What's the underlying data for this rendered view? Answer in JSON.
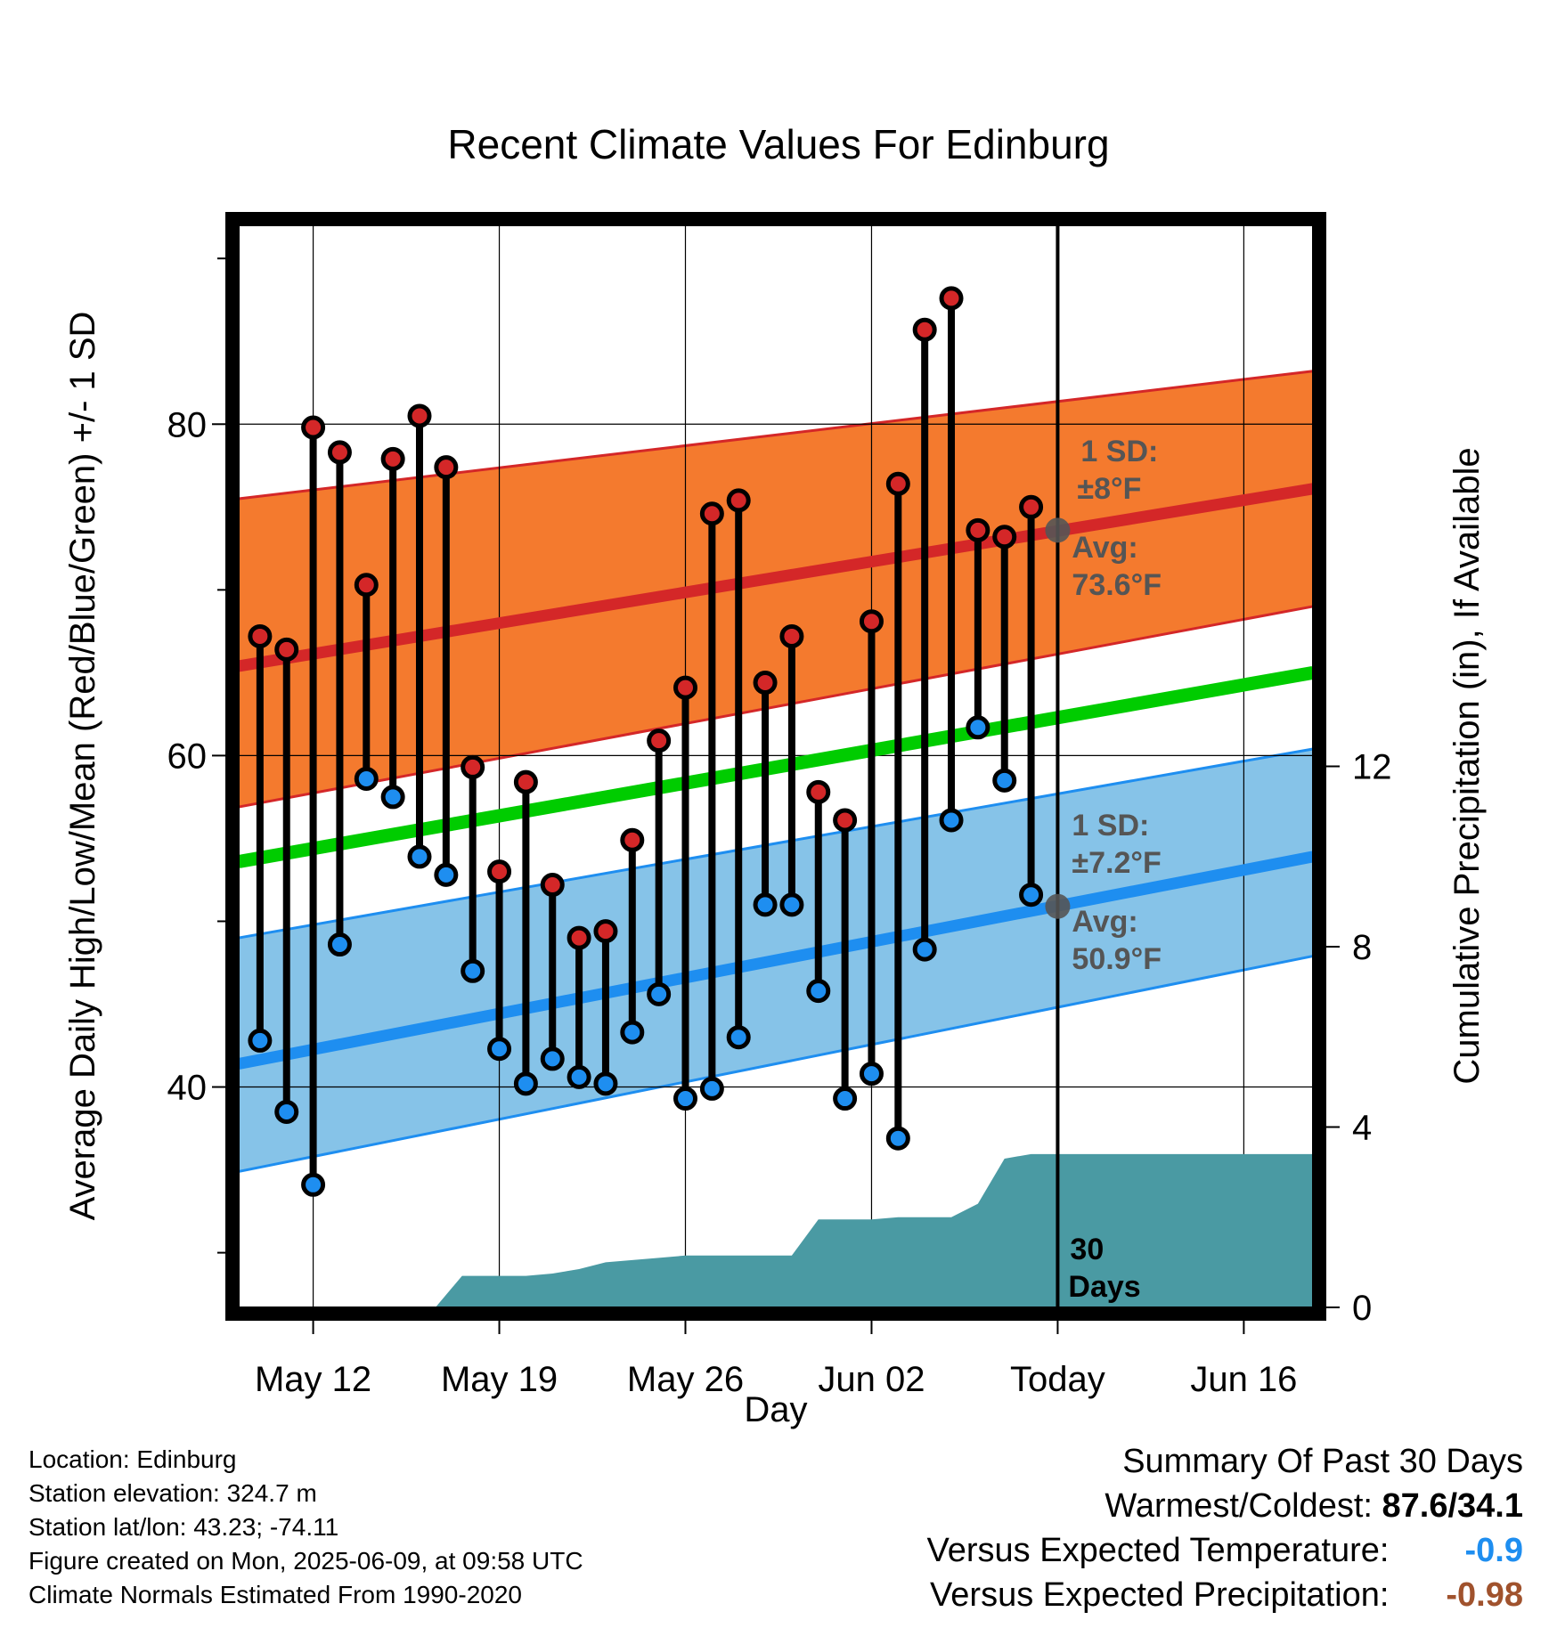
{
  "chart_data": {
    "type": "range",
    "title": "Recent Climate Values For Edinburg",
    "xlabel": "Day",
    "ylabel_left": "Average Daily High/Low/Mean (Red/Blue/Green) +/- 1 SD",
    "ylabel_right": "Cumulative Precipitation (in), If Available",
    "x_tick_labels": [
      "May 12",
      "May 19",
      "May 26",
      "Jun 02",
      "Today",
      "Jun 16"
    ],
    "x_tick_days": [
      2,
      9,
      16,
      23,
      30,
      37
    ],
    "xlim_days": [
      -0.8,
      39.6
    ],
    "ylim_left": [
      26.7,
      92
    ],
    "y_ticks_left": [
      40,
      60,
      80
    ],
    "y_minor_ticks_left": [
      30,
      50,
      70,
      90
    ],
    "ylim_right": [
      0,
      24
    ],
    "y_ticks_right": [
      0,
      4,
      8,
      12
    ],
    "today_day": 30,
    "normals": {
      "high_mean": [
        65.4,
        76.1
      ],
      "high_sd_band": [
        [
          56.9,
          75.5
        ],
        [
          69.0,
          83.2
        ]
      ],
      "low_mean": [
        41.4,
        53.9
      ],
      "low_sd_band": [
        [
          34.9,
          49.0
        ],
        [
          47.9,
          60.4
        ]
      ],
      "mean_line": [
        53.6,
        65.0
      ],
      "endpoint_days": [
        -0.8,
        39.6
      ]
    },
    "observations": {
      "days": [
        0,
        1,
        2,
        3,
        4,
        5,
        6,
        7,
        8,
        9,
        10,
        11,
        12,
        13,
        14,
        15,
        16,
        17,
        18,
        19,
        20,
        21,
        22,
        23,
        24,
        25,
        26,
        27,
        28,
        29
      ],
      "highs": [
        67.2,
        66.4,
        79.8,
        78.3,
        70.3,
        77.9,
        80.5,
        77.4,
        59.3,
        53.0,
        58.4,
        52.2,
        49.0,
        49.4,
        54.9,
        60.9,
        64.1,
        74.6,
        75.4,
        64.4,
        67.2,
        57.8,
        56.1,
        68.1,
        76.4,
        85.7,
        87.6,
        73.6,
        73.2,
        75.0
      ],
      "lows": [
        42.8,
        38.5,
        34.1,
        48.6,
        58.6,
        57.5,
        53.9,
        52.8,
        47.0,
        42.3,
        40.2,
        41.7,
        40.6,
        40.2,
        43.3,
        45.6,
        39.3,
        39.9,
        43.0,
        51.0,
        51.0,
        45.8,
        39.3,
        40.8,
        36.9,
        48.3,
        56.1,
        61.7,
        58.5,
        51.6
      ]
    },
    "precipitation": {
      "days": [
        -0.8,
        6.6,
        7.6,
        9.0,
        10.0,
        11.0,
        12.0,
        13.0,
        14.0,
        15.0,
        16.0,
        17.0,
        18.0,
        19.0,
        20.0,
        21.0,
        22.0,
        23.0,
        24.0,
        25.0,
        26.0,
        27.0,
        28.0,
        29.0,
        30.0,
        39.6
      ],
      "cumulative": [
        0,
        0,
        0.7,
        0.7,
        0.7,
        0.75,
        0.85,
        1.0,
        1.05,
        1.1,
        1.15,
        1.15,
        1.15,
        1.15,
        1.15,
        1.95,
        1.95,
        1.95,
        2.0,
        2.0,
        2.0,
        2.3,
        3.3,
        3.4,
        3.4,
        3.4
      ]
    },
    "annotations": {
      "high_sd": "1 SD:",
      "high_sd_value": "±8°F",
      "high_avg": "Avg:",
      "high_avg_value": "73.6°F",
      "high_avg_today": 73.6,
      "low_sd": "1 SD:",
      "low_sd_value": "±7.2°F",
      "low_avg": "Avg:",
      "low_avg_value": "50.9°F",
      "low_avg_today": 50.9,
      "days_line1": "30",
      "days_line2": "Days"
    },
    "colors": {
      "high_band": "#f47a2e",
      "high_line": "#d42728",
      "low_band": "#86c3e8",
      "low_line": "#1e8ef0",
      "mean_line": "#00cc00",
      "precip": "#4a9aa3",
      "high_dot": "#d42728",
      "low_dot": "#1e8ef0",
      "annotation": "#555555"
    }
  },
  "info": {
    "location": "Location: Edinburg",
    "elevation": "Station elevation: 324.7 m",
    "latlon": "Station lat/lon: 43.23; -74.11",
    "created": "Figure created on Mon, 2025-06-09, at 09:58 UTC",
    "normals": "Climate Normals Estimated From 1990-2020"
  },
  "summary": {
    "title": "Summary Of Past 30 Days",
    "warm_cold_label": "Warmest/Coldest:",
    "warm_cold_value": "87.6/34.1",
    "temp_label": "Versus Expected Temperature:",
    "temp_value": "-0.9",
    "temp_color": "#1e8ef0",
    "precip_label": "Versus Expected Precipitation:",
    "precip_value": "-0.98",
    "precip_color": "#a0522d"
  }
}
